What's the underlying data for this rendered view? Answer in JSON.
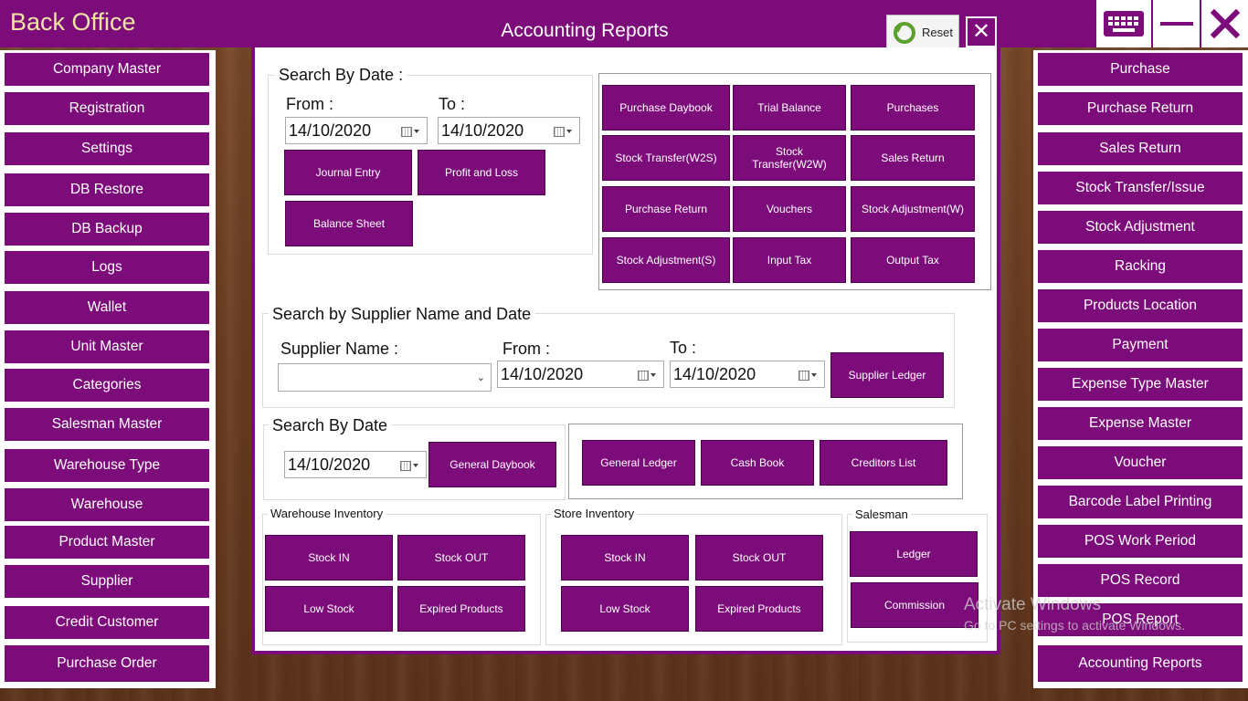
{
  "app": {
    "title": "Back Office",
    "window_title": "Accounting Reports"
  },
  "toolbar": {
    "reset_label": "Reset"
  },
  "left_nav": [
    "Company Master",
    "Registration",
    "Settings",
    "DB Restore",
    "DB Backup",
    "Logs",
    "Wallet",
    "Unit Master",
    "Categories",
    "Salesman Master",
    "Warehouse Type",
    "Warehouse",
    "Product Master",
    "Supplier",
    "Credit Customer",
    "Purchase Order"
  ],
  "right_nav": [
    "Purchase",
    "Purchase Return",
    "Sales Return",
    "Stock Transfer/Issue",
    "Stock Adjustment",
    "Racking",
    "Products Location",
    "Payment",
    "Expense Type Master",
    "Expense Master",
    "Voucher",
    "Barcode Label Printing",
    "POS Work Period",
    "POS Record",
    "POS Report",
    "Accounting Reports"
  ],
  "date_section": {
    "title": "Search By Date :",
    "from_label": "From :",
    "from_value": "14/10/2020",
    "to_label": "To :",
    "to_value": "14/10/2020",
    "buttons": [
      "Journal Entry",
      "Profit and Loss",
      "Balance Sheet"
    ]
  },
  "report_grid": [
    "Purchase Daybook",
    "Trial Balance",
    "Purchases",
    "Stock Transfer(W2S)",
    "Stock Transfer(W2W)",
    "Sales Return",
    "Purchase Return",
    "Vouchers",
    "Stock Adjustment(W)",
    "Stock Adjustment(S)",
    "Input Tax",
    "Output Tax"
  ],
  "supplier_section": {
    "title": "Search by Supplier Name and Date",
    "supplier_label": "Supplier Name :",
    "supplier_value": "",
    "from_label": "From :",
    "from_value": "14/10/2020",
    "to_label": "To :",
    "to_value": "14/10/2020",
    "ledger_button": "Supplier Ledger"
  },
  "date_section2": {
    "title": "Search By Date",
    "date_value": "14/10/2020",
    "daybook_button": "General Daybook",
    "buttons": [
      "General Ledger",
      "Cash Book",
      "Creditors List"
    ]
  },
  "warehouse_inventory": {
    "title": "Warehouse Inventory",
    "buttons": [
      "Stock IN",
      "Stock OUT",
      "Low Stock",
      "Expired Products"
    ]
  },
  "store_inventory": {
    "title": "Store Inventory",
    "buttons": [
      "Stock IN",
      "Stock OUT",
      "Low Stock",
      "Expired Products"
    ]
  },
  "salesman": {
    "title": "Salesman",
    "buttons": [
      "Ledger",
      "Commission"
    ]
  },
  "watermark": {
    "line1": "Activate Windows",
    "line2": "Go to PC settings to activate Windows."
  },
  "colors": {
    "accent": "#7d0c7b",
    "title_text": "#f3e3a6"
  }
}
